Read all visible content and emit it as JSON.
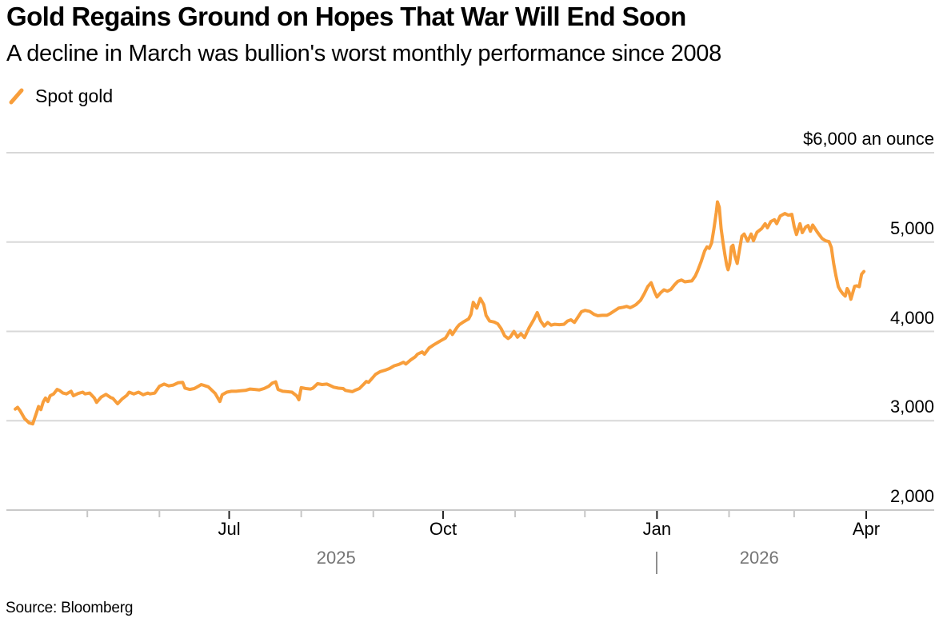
{
  "header": {
    "title": "Gold Regains Ground on Hopes That War Will End Soon",
    "subtitle": "A decline in March was bullion's worst monthly performance since 2008"
  },
  "legend": {
    "label": "Spot gold"
  },
  "source": "Source: Bloomberg",
  "colors": {
    "line": "#F89E3B",
    "grid": "#D8D8D8",
    "axis": "#C9C9C9",
    "tick_minor": "#C6C6C6",
    "tick_major": "#222222",
    "year_text": "#757575",
    "text": "#000000"
  },
  "chart_data": {
    "type": "line",
    "title": "Gold Regains Ground on Hopes That War Will End Soon",
    "subtitle": "A decline in March was bullion's worst monthly performance since 2008",
    "unit_label": "$6,000 an ounce",
    "ylim": [
      2000,
      6000
    ],
    "grid": true,
    "legend_position": "top-left",
    "yticks": [
      {
        "value": 6000,
        "label": "$6,000 an ounce"
      },
      {
        "value": 5000,
        "label": "5,000"
      },
      {
        "value": 4000,
        "label": "4,000"
      },
      {
        "value": 3000,
        "label": "3,000"
      },
      {
        "value": 2000,
        "label": "2,000"
      }
    ],
    "x_axis": {
      "start_date": "2025-04-01",
      "end_date": "2026-04-01",
      "ticks": [
        {
          "day": 30
        },
        {
          "day": 61
        },
        {
          "day": 91,
          "label": "Jul"
        },
        {
          "day": 122
        },
        {
          "day": 153
        },
        {
          "day": 183,
          "label": "Oct"
        },
        {
          "day": 214
        },
        {
          "day": 244
        },
        {
          "day": 275,
          "label": "Jan"
        },
        {
          "day": 306
        },
        {
          "day": 334
        },
        {
          "day": 365,
          "label": "Apr"
        }
      ]
    },
    "years": [
      {
        "label": "2025",
        "day": 137
      },
      {
        "label": "2026",
        "day": 319
      }
    ],
    "year_divider_day": 275,
    "series": [
      {
        "name": "Spot gold",
        "color": "#F89E3B",
        "points": [
          [
            -1,
            3130
          ],
          [
            0,
            3150
          ],
          [
            1,
            3115
          ],
          [
            2,
            3070
          ],
          [
            3,
            3025
          ],
          [
            5,
            2975
          ],
          [
            6.5,
            2965
          ],
          [
            8,
            3080
          ],
          [
            9,
            3160
          ],
          [
            10,
            3125
          ],
          [
            11,
            3210
          ],
          [
            12,
            3255
          ],
          [
            13,
            3215
          ],
          [
            14,
            3280
          ],
          [
            15.5,
            3300
          ],
          [
            17,
            3350
          ],
          [
            18,
            3340
          ],
          [
            19.5,
            3310
          ],
          [
            21,
            3300
          ],
          [
            23,
            3330
          ],
          [
            24,
            3280
          ],
          [
            26,
            3305
          ],
          [
            28,
            3320
          ],
          [
            29,
            3300
          ],
          [
            31,
            3310
          ],
          [
            33,
            3255
          ],
          [
            34,
            3205
          ],
          [
            36,
            3265
          ],
          [
            38,
            3295
          ],
          [
            40,
            3260
          ],
          [
            41,
            3250
          ],
          [
            43,
            3190
          ],
          [
            45,
            3245
          ],
          [
            47,
            3285
          ],
          [
            48,
            3320
          ],
          [
            50,
            3300
          ],
          [
            52,
            3320
          ],
          [
            54,
            3290
          ],
          [
            56,
            3310
          ],
          [
            57,
            3300
          ],
          [
            59,
            3310
          ],
          [
            61,
            3385
          ],
          [
            63,
            3410
          ],
          [
            65,
            3390
          ],
          [
            67,
            3400
          ],
          [
            69,
            3425
          ],
          [
            71,
            3430
          ],
          [
            72,
            3365
          ],
          [
            74,
            3350
          ],
          [
            76,
            3360
          ],
          [
            78,
            3390
          ],
          [
            79,
            3405
          ],
          [
            82,
            3380
          ],
          [
            83,
            3355
          ],
          [
            85,
            3305
          ],
          [
            87,
            3215
          ],
          [
            88,
            3290
          ],
          [
            90,
            3320
          ],
          [
            92,
            3330
          ],
          [
            94,
            3330
          ],
          [
            96,
            3335
          ],
          [
            98,
            3340
          ],
          [
            100,
            3355
          ],
          [
            102,
            3350
          ],
          [
            104,
            3345
          ],
          [
            106,
            3360
          ],
          [
            108,
            3385
          ],
          [
            109.5,
            3420
          ],
          [
            111,
            3435
          ],
          [
            112,
            3350
          ],
          [
            114,
            3330
          ],
          [
            116,
            3325
          ],
          [
            118,
            3320
          ],
          [
            120,
            3280
          ],
          [
            121,
            3235
          ],
          [
            122,
            3370
          ],
          [
            124,
            3360
          ],
          [
            126,
            3355
          ],
          [
            127,
            3365
          ],
          [
            129,
            3415
          ],
          [
            131,
            3405
          ],
          [
            133,
            3410
          ],
          [
            134,
            3400
          ],
          [
            136,
            3375
          ],
          [
            138,
            3365
          ],
          [
            140,
            3360
          ],
          [
            141,
            3340
          ],
          [
            143,
            3330
          ],
          [
            144,
            3325
          ],
          [
            145.5,
            3345
          ],
          [
            147,
            3360
          ],
          [
            148.5,
            3400
          ],
          [
            150,
            3440
          ],
          [
            151,
            3430
          ],
          [
            153,
            3490
          ],
          [
            154,
            3520
          ],
          [
            156,
            3550
          ],
          [
            158,
            3565
          ],
          [
            160,
            3585
          ],
          [
            162,
            3615
          ],
          [
            164,
            3630
          ],
          [
            166,
            3655
          ],
          [
            167,
            3635
          ],
          [
            169,
            3680
          ],
          [
            171,
            3715
          ],
          [
            172,
            3745
          ],
          [
            174,
            3770
          ],
          [
            175,
            3745
          ],
          [
            177,
            3815
          ],
          [
            179,
            3850
          ],
          [
            181,
            3880
          ],
          [
            182,
            3895
          ],
          [
            184,
            3925
          ],
          [
            185,
            3965
          ],
          [
            186,
            4010
          ],
          [
            187,
            3965
          ],
          [
            189,
            4045
          ],
          [
            190,
            4075
          ],
          [
            192,
            4110
          ],
          [
            194,
            4140
          ],
          [
            195,
            4190
          ],
          [
            196,
            4325
          ],
          [
            197.5,
            4260
          ],
          [
            199,
            4370
          ],
          [
            200.5,
            4300
          ],
          [
            201.5,
            4180
          ],
          [
            203,
            4115
          ],
          [
            205,
            4105
          ],
          [
            206.5,
            4085
          ],
          [
            208,
            4030
          ],
          [
            209.5,
            3950
          ],
          [
            211,
            3920
          ],
          [
            212,
            3940
          ],
          [
            213.5,
            4000
          ],
          [
            215,
            3935
          ],
          [
            216.5,
            3975
          ],
          [
            218,
            3930
          ],
          [
            220,
            4040
          ],
          [
            222,
            4130
          ],
          [
            223.5,
            4210
          ],
          [
            225,
            4115
          ],
          [
            226.5,
            4060
          ],
          [
            228,
            4100
          ],
          [
            229.5,
            4070
          ],
          [
            231,
            4080
          ],
          [
            233,
            4075
          ],
          [
            235,
            4080
          ],
          [
            236.5,
            4115
          ],
          [
            238,
            4130
          ],
          [
            239.5,
            4100
          ],
          [
            241,
            4160
          ],
          [
            242.5,
            4220
          ],
          [
            244,
            4235
          ],
          [
            246,
            4225
          ],
          [
            248,
            4190
          ],
          [
            249.5,
            4175
          ],
          [
            251.5,
            4180
          ],
          [
            253.5,
            4180
          ],
          [
            255,
            4200
          ],
          [
            257,
            4235
          ],
          [
            258.5,
            4260
          ],
          [
            260.5,
            4270
          ],
          [
            262,
            4280
          ],
          [
            263.5,
            4265
          ],
          [
            265,
            4285
          ],
          [
            266,
            4300
          ],
          [
            268,
            4350
          ],
          [
            269.5,
            4420
          ],
          [
            271,
            4500
          ],
          [
            272.5,
            4545
          ],
          [
            274,
            4440
          ],
          [
            275,
            4385
          ],
          [
            276.5,
            4430
          ],
          [
            278,
            4465
          ],
          [
            279.5,
            4450
          ],
          [
            281,
            4470
          ],
          [
            282.5,
            4520
          ],
          [
            284,
            4560
          ],
          [
            285.5,
            4575
          ],
          [
            287,
            4555
          ],
          [
            288.5,
            4560
          ],
          [
            290,
            4565
          ],
          [
            291.5,
            4620
          ],
          [
            292.5,
            4680
          ],
          [
            294,
            4780
          ],
          [
            295.5,
            4900
          ],
          [
            296.5,
            4945
          ],
          [
            297.5,
            4930
          ],
          [
            298.5,
            4990
          ],
          [
            299.5,
            5150
          ],
          [
            300.5,
            5330
          ],
          [
            301,
            5450
          ],
          [
            301.8,
            5390
          ],
          [
            302.6,
            5150
          ],
          [
            303.4,
            5000
          ],
          [
            304.2,
            4860
          ],
          [
            305,
            4740
          ],
          [
            305.6,
            4690
          ],
          [
            306.3,
            4760
          ],
          [
            307,
            4945
          ],
          [
            307.7,
            4965
          ],
          [
            308.5,
            4845
          ],
          [
            309.5,
            4760
          ],
          [
            310.5,
            4915
          ],
          [
            311.5,
            5065
          ],
          [
            312.5,
            5090
          ],
          [
            314,
            5010
          ],
          [
            315.5,
            5090
          ],
          [
            316.5,
            5015
          ],
          [
            318,
            5110
          ],
          [
            320,
            5150
          ],
          [
            321.5,
            5205
          ],
          [
            322.5,
            5160
          ],
          [
            324,
            5230
          ],
          [
            325.5,
            5250
          ],
          [
            326.5,
            5205
          ],
          [
            328,
            5290
          ],
          [
            330,
            5320
          ],
          [
            331.5,
            5300
          ],
          [
            333,
            5310
          ],
          [
            334,
            5175
          ],
          [
            335,
            5085
          ],
          [
            336.5,
            5205
          ],
          [
            337.5,
            5105
          ],
          [
            339,
            5170
          ],
          [
            340,
            5185
          ],
          [
            341,
            5120
          ],
          [
            342,
            5190
          ],
          [
            344,
            5110
          ],
          [
            346,
            5040
          ],
          [
            347.5,
            5015
          ],
          [
            349,
            5005
          ],
          [
            350,
            4940
          ],
          [
            351,
            4760
          ],
          [
            352,
            4620
          ],
          [
            353,
            4500
          ],
          [
            354,
            4455
          ],
          [
            355,
            4420
          ],
          [
            356,
            4395
          ],
          [
            356.8,
            4480
          ],
          [
            357.6,
            4440
          ],
          [
            358.4,
            4360
          ],
          [
            359.2,
            4430
          ],
          [
            360,
            4505
          ],
          [
            361,
            4510
          ],
          [
            362,
            4500
          ],
          [
            363,
            4640
          ],
          [
            364,
            4670
          ]
        ]
      }
    ]
  }
}
